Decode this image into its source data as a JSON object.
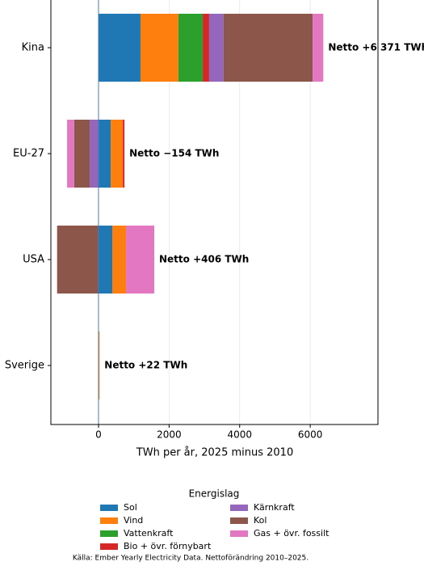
{
  "chart_data": {
    "type": "bar",
    "orientation": "horizontal",
    "stacked": "diverging",
    "xlabel": "TWh per år, 2025 minus 2010",
    "categories": [
      "Kina",
      "EU-27",
      "USA",
      "Sverige"
    ],
    "series": [
      {
        "name": "Sol",
        "color": "#1f77b4",
        "values": [
          1190,
          345,
          390,
          0
        ]
      },
      {
        "name": "Vind",
        "color": "#ff7f0e",
        "values": [
          1075,
          345,
          390,
          30
        ]
      },
      {
        "name": "Vattenkraft",
        "color": "#2ca02c",
        "values": [
          690,
          0,
          0,
          0
        ]
      },
      {
        "name": "Bio + övr. förnybart",
        "color": "#d62728",
        "values": [
          180,
          46,
          0,
          0
        ]
      },
      {
        "name": "Kärnkraft",
        "color": "#9467bd",
        "values": [
          410,
          -250,
          0,
          -8
        ]
      },
      {
        "name": "Kol",
        "color": "#8c564b",
        "values": [
          2526,
          -440,
          -1174,
          0
        ]
      },
      {
        "name": "Gas + övr. fossilt",
        "color": "#e377c2",
        "values": [
          300,
          -200,
          800,
          0
        ]
      }
    ],
    "net_labels": [
      "Netto +6 371 TWh",
      "Netto −154 TWh",
      "Netto +406 TWh",
      "Netto +22 TWh"
    ],
    "xlim": [
      -1350,
      7920
    ],
    "xticks": [
      0,
      2000,
      4000,
      6000
    ],
    "grid": true,
    "legend": {
      "title": "Energislag",
      "position": "bottom"
    },
    "source": "Källa: Ember Yearly Electricity Data. Nettoförändring 2010–2025."
  }
}
